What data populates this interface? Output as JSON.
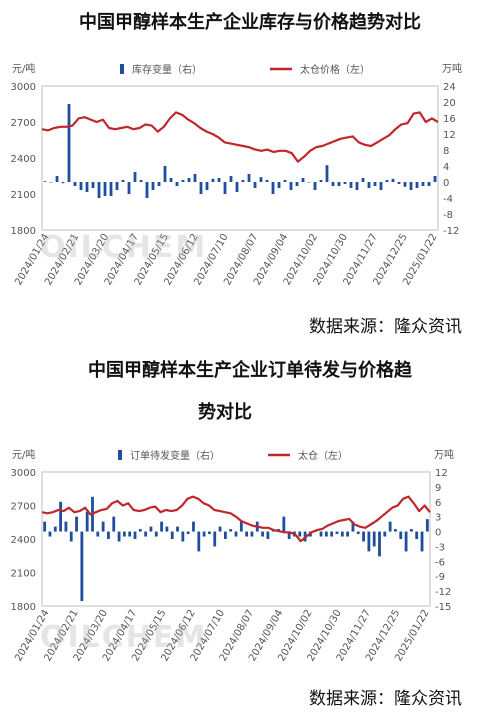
{
  "charts": [
    {
      "title": "中国甲醇样本生产企业库存与价格趋势对比",
      "source": "数据来源：隆众资讯",
      "watermark": "OILCHEM",
      "chart_data": {
        "type": "bar+line",
        "left_axis_unit": "元/吨",
        "right_axis_unit": "万吨",
        "left_ylim": [
          1800,
          3000
        ],
        "left_ticks": [
          1800,
          2100,
          2400,
          2700,
          3000
        ],
        "right_ylim": [
          -12,
          24
        ],
        "right_ticks": [
          -12,
          -8,
          -4,
          0,
          4,
          8,
          12,
          16,
          20,
          24
        ],
        "x_ticks": [
          "2024/01/24",
          "2024/02/21",
          "2024/03/20",
          "2024/04/17",
          "2024/05/15",
          "2024/06/12",
          "2024/07/10",
          "2024/08/07",
          "2024/09/04",
          "2024/10/02",
          "2024/10/30",
          "2024/11/27",
          "2024/12/25",
          "2025/01/22"
        ],
        "legend": [
          {
            "name": "库存变量（右）",
            "type": "bar",
            "color": "#1f4e9c"
          },
          {
            "name": "太仓价格（左）",
            "type": "line",
            "color": "#c0272d"
          }
        ],
        "bar_series": {
          "name": "库存变量（右）",
          "values": [
            0.2,
            -0.1,
            1.5,
            -0.3,
            19.5,
            -1,
            -2,
            -2.5,
            -1.5,
            -4,
            -3.5,
            -3.5,
            -2,
            0.5,
            -3,
            2.5,
            0.5,
            -4,
            -2,
            -1,
            4,
            1,
            -1,
            0.5,
            1,
            2,
            -3,
            -2,
            0.8,
            1,
            -3,
            1.5,
            -2.5,
            0.5,
            2,
            -1.5,
            1.2,
            0.5,
            -3,
            -1.5,
            0.5,
            -2,
            -1,
            1,
            0,
            -2,
            0.5,
            4.2,
            -1,
            -1,
            -0.5,
            -1.5,
            -2,
            1,
            -1.5,
            -1,
            -2,
            0.5,
            0.8,
            -0.5,
            -1.2,
            -2,
            -1.5,
            -1,
            -1,
            1.5
          ]
        },
        "line_series": {
          "name": "太仓价格（左）",
          "values": [
            2640,
            2630,
            2650,
            2660,
            2660,
            2670,
            2730,
            2740,
            2720,
            2700,
            2720,
            2650,
            2640,
            2650,
            2660,
            2640,
            2650,
            2680,
            2670,
            2620,
            2660,
            2730,
            2780,
            2760,
            2720,
            2690,
            2650,
            2620,
            2600,
            2570,
            2530,
            2520,
            2510,
            2500,
            2490,
            2470,
            2460,
            2470,
            2450,
            2460,
            2460,
            2440,
            2370,
            2410,
            2460,
            2490,
            2500,
            2520,
            2540,
            2560,
            2570,
            2580,
            2530,
            2510,
            2500,
            2530,
            2560,
            2590,
            2640,
            2680,
            2690,
            2770,
            2780,
            2700,
            2730,
            2700
          ]
        }
      }
    },
    {
      "title": "中国甲醇样本生产企业订单待发与价格趋",
      "title_line2": "势对比",
      "source": "数据来源：隆众资讯",
      "watermark": "OILCHEM",
      "chart_data": {
        "type": "bar+line",
        "left_axis_unit": "元/吨",
        "right_axis_unit": "万吨",
        "left_ylim": [
          1800,
          3000
        ],
        "left_ticks": [
          1800,
          2100,
          2400,
          2700,
          3000
        ],
        "right_ylim": [
          -15,
          12
        ],
        "right_ticks": [
          -15,
          -12,
          -9,
          -6,
          -3,
          0,
          3,
          6,
          9,
          12
        ],
        "x_ticks": [
          "2024/01/24",
          "2024/02/21",
          "2024/03/20",
          "2024/04/17",
          "2024/05/15",
          "2024/06/12",
          "2024/07/10",
          "2024/08/07",
          "2024/09/04",
          "2024/10/02",
          "2024/10/30",
          "2024/11/27",
          "2024/12/25",
          "2025/01/22"
        ],
        "legend": [
          {
            "name": "订单待发变量（右）",
            "type": "bar",
            "color": "#1f4e9c"
          },
          {
            "name": "太仓（左）",
            "type": "line",
            "color": "#c0272d"
          }
        ],
        "bar_series": {
          "name": "订单待发变量（右）",
          "values": [
            2,
            -1,
            1,
            6,
            2,
            -2,
            3,
            -14,
            4,
            7,
            -1,
            2,
            -1.5,
            3,
            -2,
            -1,
            -1,
            -1.5,
            0.5,
            -1,
            1,
            -1,
            2,
            1,
            -1.5,
            1,
            -2,
            -0.5,
            2,
            -4,
            -1,
            -0.5,
            -3,
            1,
            -1.5,
            0.5,
            -1,
            2,
            -1,
            -1,
            2,
            -1,
            -1.5,
            0.5,
            0.5,
            3,
            -1.5,
            -1,
            -1,
            -2,
            -1,
            0,
            -1,
            -1,
            -1,
            -0.5,
            -1,
            -1,
            2,
            -0.5,
            -2,
            -4,
            -3,
            -5,
            -1,
            2,
            0.5,
            -1.5,
            -4,
            0.5,
            -1.5,
            -4,
            2.5
          ]
        },
        "line_series": {
          "name": "太仓（左）",
          "values": [
            2640,
            2630,
            2640,
            2660,
            2650,
            2680,
            2640,
            2650,
            2680,
            2620,
            2640,
            2660,
            2670,
            2720,
            2740,
            2700,
            2720,
            2660,
            2650,
            2660,
            2680,
            2690,
            2640,
            2660,
            2650,
            2660,
            2700,
            2760,
            2780,
            2760,
            2720,
            2700,
            2660,
            2650,
            2640,
            2630,
            2600,
            2560,
            2540,
            2520,
            2510,
            2500,
            2500,
            2480,
            2470,
            2460,
            2460,
            2440,
            2380,
            2420,
            2460,
            2480,
            2490,
            2520,
            2540,
            2560,
            2570,
            2580,
            2530,
            2510,
            2500,
            2530,
            2560,
            2600,
            2640,
            2680,
            2700,
            2760,
            2780,
            2720,
            2650,
            2700,
            2640
          ]
        }
      }
    }
  ]
}
